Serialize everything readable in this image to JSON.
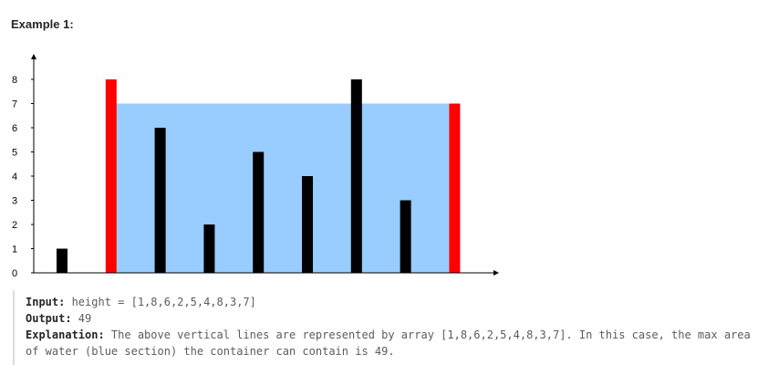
{
  "example": {
    "title": "Example 1:"
  },
  "chart_data": {
    "type": "bar",
    "x": [
      1,
      2,
      3,
      4,
      5,
      6,
      7,
      8,
      9
    ],
    "values": [
      1,
      8,
      6,
      2,
      5,
      4,
      8,
      3,
      7
    ],
    "ylim": [
      0,
      9
    ],
    "yticks": [
      "0",
      "1",
      "2",
      "3",
      "4",
      "5",
      "6",
      "7",
      "8"
    ],
    "highlight_indices": [
      1,
      8
    ],
    "water_level": 7,
    "colors": {
      "bar": "#000000",
      "highlight": "#ff0000",
      "water": "#99ccff",
      "axis": "#000000"
    },
    "grid": false
  },
  "text": {
    "input_label": "Input:",
    "input_value": " height = [1,8,6,2,5,4,8,3,7]",
    "output_label": "Output:",
    "output_value": " 49",
    "explanation_label": "Explanation:",
    "explanation_line1": " The above vertical lines are represented by array [1,8,6,2,5,4,8,3,7]. In this case, the max area",
    "explanation_line2": "of water (blue section) the container can contain is 49."
  }
}
